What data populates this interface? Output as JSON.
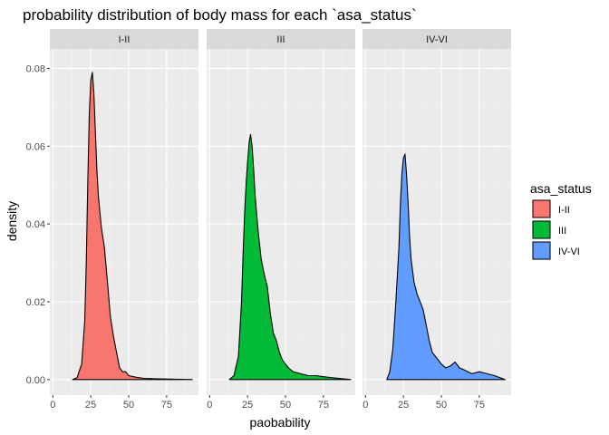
{
  "chart_data": {
    "type": "area",
    "title": "probability distribution of body mass for each `asa_status`",
    "xlabel": "paobability",
    "ylabel": "density",
    "xlim": [
      -2,
      96
    ],
    "ylim": [
      -0.004,
      0.085
    ],
    "x_ticks": [
      0,
      25,
      50,
      75
    ],
    "y_ticks": [
      0.0,
      0.02,
      0.04,
      0.06,
      0.08
    ],
    "y_tick_labels": [
      "0.00",
      "0.02",
      "0.04",
      "0.06",
      "0.08"
    ],
    "facet_var": "asa_status",
    "grid": true,
    "legend": {
      "title": "asa_status",
      "position": "right"
    },
    "series": [
      {
        "name": "I-II",
        "color": "#F8766D",
        "x": [
          13,
          16,
          19,
          21,
          22,
          23,
          24,
          25,
          26,
          27,
          28,
          29,
          30,
          32,
          34,
          36,
          38,
          40,
          42,
          44,
          46,
          48,
          50,
          55,
          60,
          70,
          80,
          92
        ],
        "y": [
          0.0,
          0.0005,
          0.004,
          0.015,
          0.03,
          0.05,
          0.068,
          0.077,
          0.079,
          0.074,
          0.064,
          0.054,
          0.047,
          0.039,
          0.034,
          0.025,
          0.016,
          0.011,
          0.007,
          0.003,
          0.002,
          0.002,
          0.001,
          0.0006,
          0.0003,
          0.0002,
          0.0001,
          0.0
        ]
      },
      {
        "name": "III",
        "color": "#00BA38",
        "x": [
          13,
          16,
          19,
          21,
          22,
          23,
          24,
          25,
          26,
          27,
          28,
          29,
          30,
          32,
          34,
          36,
          38,
          40,
          42,
          44,
          46,
          48,
          50,
          52,
          55,
          60,
          65,
          70,
          80,
          93
        ],
        "y": [
          0.0,
          0.001,
          0.006,
          0.02,
          0.032,
          0.042,
          0.05,
          0.056,
          0.061,
          0.063,
          0.06,
          0.054,
          0.047,
          0.038,
          0.031,
          0.027,
          0.024,
          0.017,
          0.012,
          0.01,
          0.007,
          0.005,
          0.004,
          0.003,
          0.002,
          0.0015,
          0.001,
          0.001,
          0.0005,
          0.0
        ]
      },
      {
        "name": "IV-VI",
        "color": "#619CFF",
        "x": [
          14,
          16,
          18,
          20,
          22,
          23,
          24,
          25,
          26,
          27,
          28,
          29,
          30,
          32,
          34,
          36,
          38,
          40,
          42,
          44,
          46,
          48,
          50,
          53,
          56,
          59,
          62,
          65,
          70,
          75,
          80,
          85,
          92
        ],
        "y": [
          0.0,
          0.002,
          0.008,
          0.02,
          0.034,
          0.045,
          0.053,
          0.057,
          0.058,
          0.053,
          0.046,
          0.037,
          0.031,
          0.025,
          0.022,
          0.02,
          0.018,
          0.014,
          0.01,
          0.007,
          0.006,
          0.005,
          0.004,
          0.003,
          0.0035,
          0.0045,
          0.003,
          0.0025,
          0.0015,
          0.002,
          0.0015,
          0.001,
          0.0
        ]
      }
    ]
  }
}
